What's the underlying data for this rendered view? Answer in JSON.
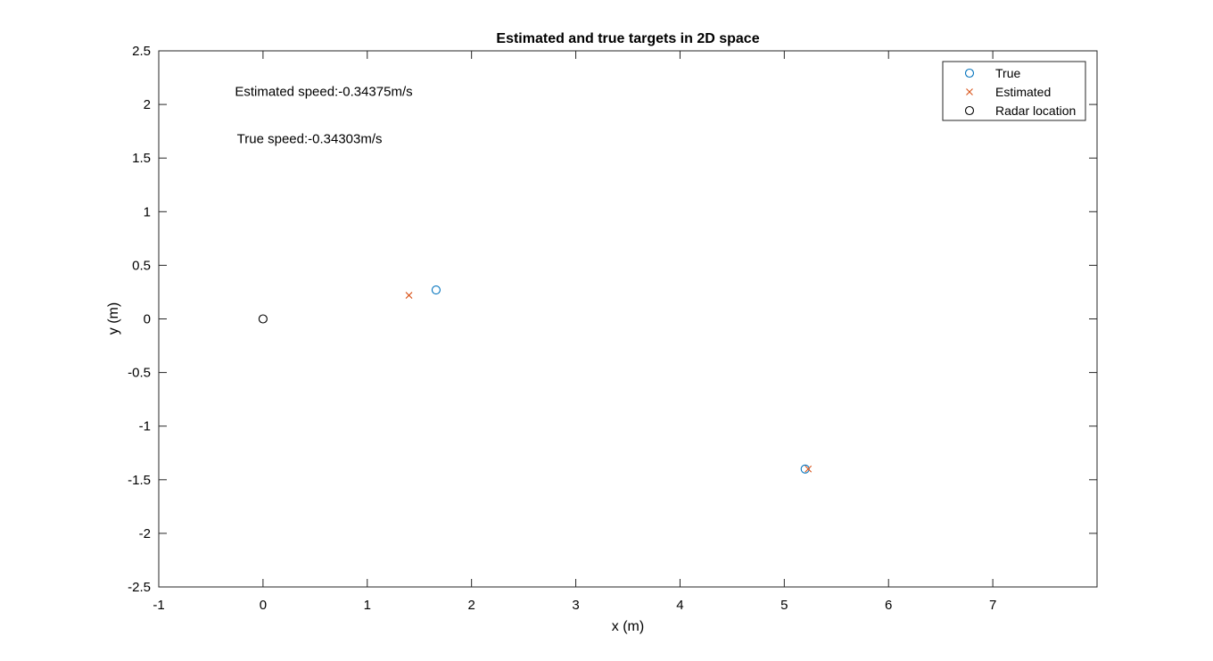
{
  "chart_data": {
    "type": "scatter",
    "title": "Estimated and true targets in 2D space",
    "xlabel": "x (m)",
    "ylabel": "y (m)",
    "xlim": [
      -1,
      8
    ],
    "ylim": [
      -2.5,
      2.5
    ],
    "x_ticks": [
      -1,
      0,
      1,
      2,
      3,
      4,
      5,
      6,
      7
    ],
    "y_ticks": [
      2.5,
      2,
      1.5,
      1,
      0.5,
      0,
      -0.5,
      -1,
      -1.5,
      -2,
      -2.5
    ],
    "grid": false,
    "legend_position": "top-right",
    "series": [
      {
        "name": "True",
        "marker": "circle",
        "color": "#0072BD",
        "points": [
          {
            "x": 1.66,
            "y": 0.27
          },
          {
            "x": 5.2,
            "y": -1.4
          }
        ]
      },
      {
        "name": "Estimated",
        "marker": "x",
        "color": "#D95319",
        "points": [
          {
            "x": 1.4,
            "y": 0.22
          },
          {
            "x": 5.23,
            "y": -1.4
          }
        ]
      },
      {
        "name": "Radar location",
        "marker": "circle",
        "color": "#000000",
        "points": [
          {
            "x": 0,
            "y": 0
          }
        ]
      }
    ],
    "annotations": [
      {
        "text": "Estimated speed:-0.34375m/s",
        "x": -0.27,
        "y": 2.08
      },
      {
        "text": "True speed:-0.34303m/s",
        "x": -0.25,
        "y": 1.64
      }
    ]
  }
}
